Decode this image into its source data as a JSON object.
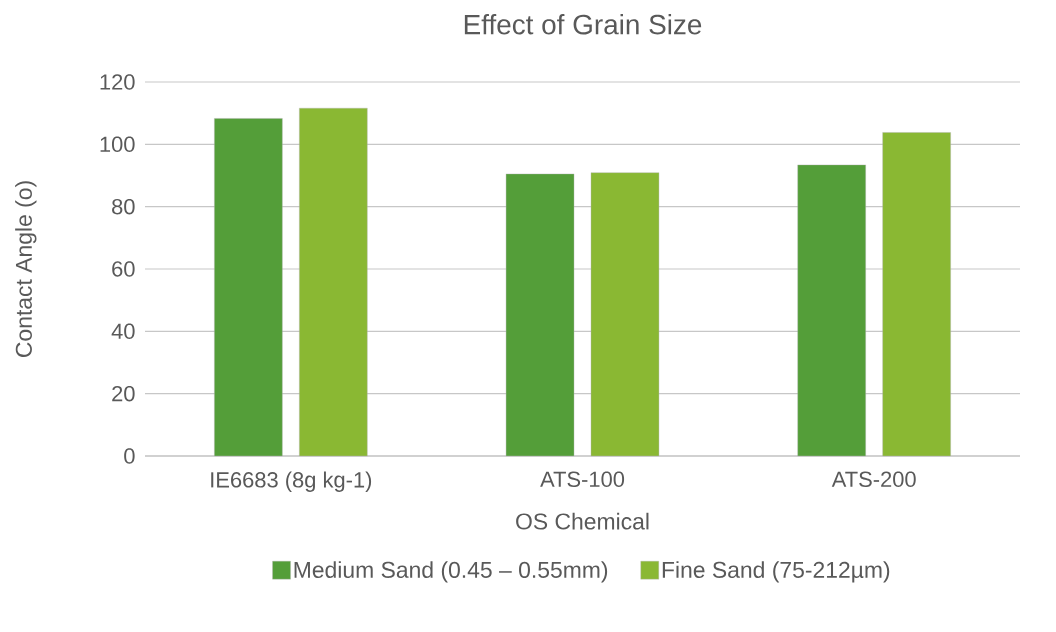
{
  "chart_data": {
    "type": "bar",
    "title": "Effect of Grain Size",
    "xlabel": "OS Chemical",
    "ylabel": "Contact Angle (o)",
    "categories": [
      "IE6683 (8g kg-1)",
      "ATS-100",
      "ATS-200"
    ],
    "series": [
      {
        "name": "Medium Sand (0.45 – 0.55mm)",
        "color": "#549e39",
        "values": [
          108.3,
          90.5,
          93.4
        ]
      },
      {
        "name": "Fine Sand (75-212µm)",
        "color": "#8ab833",
        "values": [
          111.6,
          90.9,
          103.8
        ]
      }
    ],
    "ylim": [
      0,
      120
    ],
    "yticks": [
      0,
      20,
      40,
      60,
      80,
      100,
      120
    ],
    "grid": "y",
    "legend": "bottom"
  }
}
